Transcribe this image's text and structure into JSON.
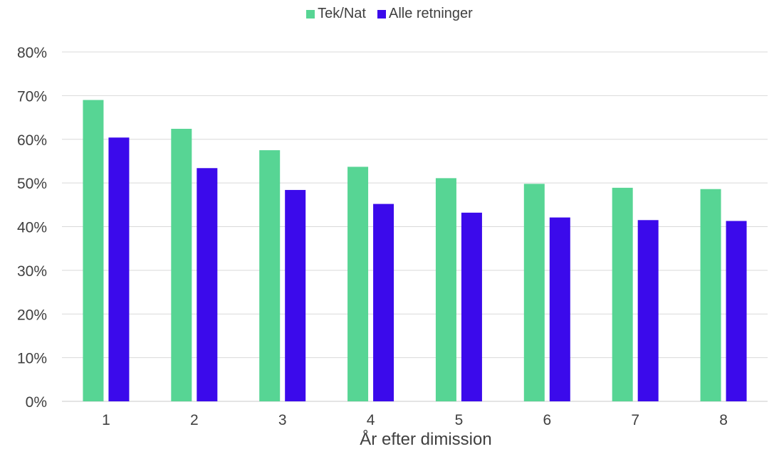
{
  "chart_data": {
    "type": "bar",
    "xlabel": "År efter dimission",
    "ylabel": "",
    "categories": [
      "1",
      "2",
      "3",
      "4",
      "5",
      "6",
      "7",
      "8"
    ],
    "ylim": [
      0,
      80
    ],
    "yticks": [
      "0%",
      "10%",
      "20%",
      "30%",
      "40%",
      "50%",
      "60%",
      "70%",
      "80%"
    ],
    "grid": true,
    "legend_position": "top",
    "series": [
      {
        "name": "Tek/Nat",
        "color": "#57D594",
        "values": [
          69,
          62.4,
          57.5,
          53.7,
          51.1,
          49.8,
          48.9,
          48.6
        ]
      },
      {
        "name": "Alle retninger",
        "color": "#3B0AEB",
        "values": [
          60.4,
          53.4,
          48.4,
          45.2,
          43.2,
          42.1,
          41.5,
          41.3
        ]
      }
    ]
  }
}
